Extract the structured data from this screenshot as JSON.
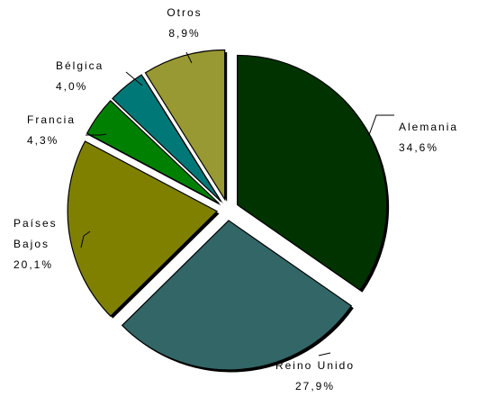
{
  "chart_data": {
    "type": "pie",
    "exploded": true,
    "legend": "none",
    "slices": [
      {
        "name": "Alemania",
        "name_lines": [
          "Alemania"
        ],
        "value": 34.6,
        "value_label": "34,6%",
        "color": "#003300"
      },
      {
        "name": "Reino Unido",
        "name_lines": [
          "Reino Unido"
        ],
        "value": 27.9,
        "value_label": "27,9%",
        "color": "#336666"
      },
      {
        "name": "Países Bajos",
        "name_lines": [
          "Países",
          "Bajos"
        ],
        "value": 20.1,
        "value_label": "20,1%",
        "color": "#808000"
      },
      {
        "name": "Francia",
        "name_lines": [
          "Francia"
        ],
        "value": 4.3,
        "value_label": "4,3%",
        "color": "#008000"
      },
      {
        "name": "Bélgica",
        "name_lines": [
          "Bélgica"
        ],
        "value": 4.0,
        "value_label": "4,0%",
        "color": "#007878"
      },
      {
        "name": "Otros",
        "name_lines": [
          "Otros"
        ],
        "value": 8.9,
        "value_label": "8,9%",
        "color": "#999933"
      }
    ]
  }
}
